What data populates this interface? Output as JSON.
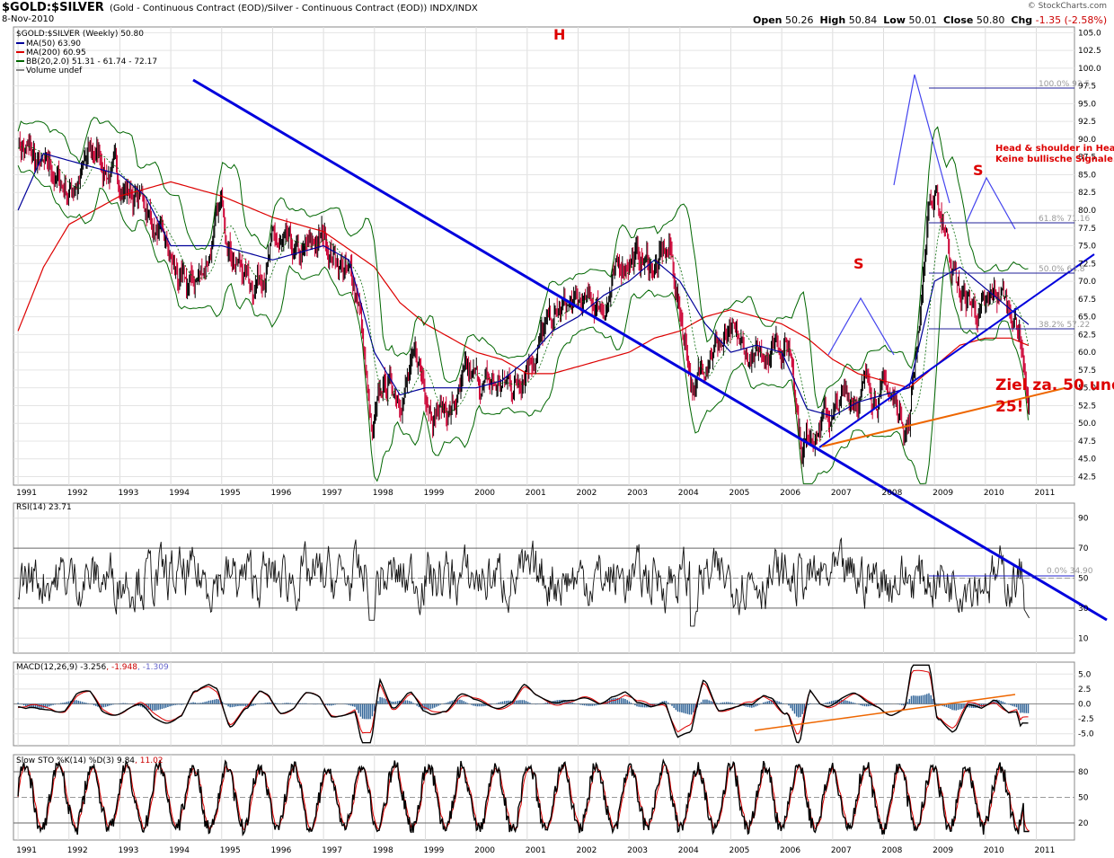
{
  "header": {
    "symbol": "$GOLD:$SILVER",
    "description": "(Gold - Continuous Contract (EOD)/Silver - Continuous Contract (EOD)) INDX/INDX",
    "date": "8-Nov-2010",
    "credit": "© StockCharts.com",
    "open_label": "Open",
    "open": "50.26",
    "high_label": "High",
    "high": "50.84",
    "low_label": "Low",
    "low": "50.01",
    "close_label": "Close",
    "close": "50.80",
    "chg_label": "Chg",
    "chg": "-1.35 (-2.58%)"
  },
  "colors": {
    "price": "#000000",
    "down": "#cc0033",
    "ma50": "#000099",
    "ma200": "#dd0000",
    "bb": "#006600",
    "trend": "#0000dd",
    "orange": "#ee6600",
    "annotation": "#dd0000",
    "macd_hist": "#336699"
  },
  "chart_data": [
    {
      "type": "candlestick",
      "title": "$GOLD:$SILVER (Weekly) 50.80",
      "legend": [
        {
          "label": "MA(50) 63.90",
          "color": "#000099"
        },
        {
          "label": "MA(200) 60.95",
          "color": "#dd0000"
        },
        {
          "label": "BB(20,2.0) 51.31 - 61.74 - 72.17",
          "color": "#006600"
        },
        {
          "label": "Volume undef",
          "color": "#888888"
        }
      ],
      "x_ticks": [
        "1991",
        "1992",
        "1993",
        "1994",
        "1995",
        "1996",
        "1997",
        "1998",
        "1999",
        "2000",
        "2001",
        "2002",
        "2003",
        "2004",
        "2005",
        "2006",
        "2007",
        "2008",
        "2009",
        "2010",
        "2011"
      ],
      "y_ticks": [
        "105.0",
        "102.5",
        "100.0",
        "97.5",
        "95.0",
        "92.5",
        "90.0",
        "87.5",
        "85.0",
        "82.5",
        "80.0",
        "77.5",
        "75.0",
        "72.5",
        "70.0",
        "67.5",
        "65.0",
        "62.5",
        "60.0",
        "57.5",
        "55.0",
        "52.5",
        "50.0",
        "47.5",
        "45.0",
        "42.5"
      ],
      "ylim": [
        41.3,
        105.8
      ],
      "series_close": [
        [
          1991.0,
          90
        ],
        [
          1991.5,
          85
        ],
        [
          1992.0,
          83
        ],
        [
          1992.5,
          88
        ],
        [
          1993.0,
          84
        ],
        [
          1993.5,
          81
        ],
        [
          1994.0,
          72
        ],
        [
          1994.3,
          68
        ],
        [
          1994.6,
          71
        ],
        [
          1995.0,
          80
        ],
        [
          1995.3,
          73
        ],
        [
          1995.6,
          70
        ],
        [
          1996.0,
          75
        ],
        [
          1996.5,
          72
        ],
        [
          1997.0,
          76
        ],
        [
          1997.4,
          72
        ],
        [
          1997.7,
          68
        ],
        [
          1997.95,
          47
        ],
        [
          1998.2,
          55
        ],
        [
          1998.5,
          55
        ],
        [
          1998.8,
          58
        ],
        [
          1999.2,
          53
        ],
        [
          1999.5,
          52
        ],
        [
          1999.8,
          55
        ],
        [
          2000.2,
          55
        ],
        [
          2000.5,
          55
        ],
        [
          2000.8,
          56
        ],
        [
          2001.0,
          60
        ],
        [
          2001.5,
          64
        ],
        [
          2001.8,
          66
        ],
        [
          2002.0,
          66
        ],
        [
          2002.5,
          67
        ],
        [
          2003.0,
          74
        ],
        [
          2003.5,
          72
        ],
        [
          2003.8,
          74
        ],
        [
          2004.0,
          66
        ],
        [
          2004.3,
          54
        ],
        [
          2004.6,
          62
        ],
        [
          2005.0,
          61
        ],
        [
          2005.5,
          58
        ],
        [
          2005.9,
          63
        ],
        [
          2006.2,
          60
        ],
        [
          2006.4,
          47
        ],
        [
          2006.6,
          50
        ],
        [
          2007.0,
          51
        ],
        [
          2007.5,
          55
        ],
        [
          2008.0,
          55
        ],
        [
          2008.5,
          50
        ],
        [
          2008.75,
          69
        ],
        [
          2008.9,
          82
        ],
        [
          2009.2,
          78
        ],
        [
          2009.5,
          68
        ],
        [
          2009.8,
          66
        ],
        [
          2010.0,
          65
        ],
        [
          2010.3,
          68
        ],
        [
          2010.5,
          66
        ],
        [
          2010.7,
          63
        ],
        [
          2010.85,
          52
        ]
      ],
      "ma50": [
        [
          1991.0,
          80
        ],
        [
          1991.5,
          88
        ],
        [
          1992.0,
          87
        ],
        [
          1993.0,
          85
        ],
        [
          1993.5,
          82
        ],
        [
          1994.0,
          75
        ],
        [
          1995.0,
          75
        ],
        [
          1995.5,
          74
        ],
        [
          1996.0,
          73
        ],
        [
          1997.0,
          75
        ],
        [
          1997.5,
          73
        ],
        [
          1998.0,
          60
        ],
        [
          1998.5,
          54
        ],
        [
          1999.0,
          55
        ],
        [
          1999.5,
          55
        ],
        [
          2000.0,
          55
        ],
        [
          2000.5,
          56
        ],
        [
          2001.0,
          59
        ],
        [
          2001.5,
          63
        ],
        [
          2002.0,
          65
        ],
        [
          2002.5,
          68
        ],
        [
          2003.0,
          70
        ],
        [
          2003.5,
          73
        ],
        [
          2004.0,
          70
        ],
        [
          2004.5,
          64
        ],
        [
          2005.0,
          60
        ],
        [
          2005.5,
          61
        ],
        [
          2006.0,
          60
        ],
        [
          2006.5,
          52
        ],
        [
          2007.0,
          51
        ],
        [
          2007.5,
          53
        ],
        [
          2008.0,
          54
        ],
        [
          2008.5,
          55
        ],
        [
          2009.0,
          70
        ],
        [
          2009.5,
          72
        ],
        [
          2010.0,
          69
        ],
        [
          2010.5,
          66
        ],
        [
          2010.85,
          63.9
        ]
      ],
      "ma200": [
        [
          1991.0,
          63
        ],
        [
          1991.5,
          72
        ],
        [
          1992.0,
          78
        ],
        [
          1993.0,
          82
        ],
        [
          1994.0,
          84
        ],
        [
          1995.0,
          82
        ],
        [
          1996.0,
          79
        ],
        [
          1997.0,
          77
        ],
        [
          1998.0,
          72
        ],
        [
          1998.5,
          67
        ],
        [
          1999.0,
          64
        ],
        [
          1999.5,
          62
        ],
        [
          2000.0,
          60
        ],
        [
          2000.5,
          59
        ],
        [
          2001.0,
          57
        ],
        [
          2001.5,
          57
        ],
        [
          2002.0,
          58
        ],
        [
          2002.5,
          59
        ],
        [
          2003.0,
          60
        ],
        [
          2003.5,
          62
        ],
        [
          2004.0,
          63
        ],
        [
          2004.5,
          65
        ],
        [
          2005.0,
          66
        ],
        [
          2005.5,
          65
        ],
        [
          2006.0,
          64
        ],
        [
          2006.5,
          62
        ],
        [
          2007.0,
          59
        ],
        [
          2007.5,
          57
        ],
        [
          2008.0,
          56
        ],
        [
          2008.5,
          55
        ],
        [
          2009.0,
          58
        ],
        [
          2009.5,
          61
        ],
        [
          2010.0,
          62
        ],
        [
          2010.5,
          62
        ],
        [
          2010.85,
          60.95
        ]
      ],
      "annotations": [
        {
          "text": "H"
        },
        {
          "text": "S"
        },
        {
          "text": "S"
        },
        {
          "text": "Head & shoulder in Hea"
        },
        {
          "text": "Keine bullische Signale."
        },
        {
          "text": "Ziel za. 50 und"
        },
        {
          "text": "25!"
        }
      ],
      "fib_levels": [
        "100.0% 93.5",
        "61.8% 71.16",
        "50.0% 64.8",
        "38.2% 57.22"
      ]
    },
    {
      "type": "line",
      "title": "RSI(14) 23.71",
      "y_ticks": [
        "90",
        "70",
        "50",
        "30",
        "10"
      ],
      "ylim": [
        0,
        100
      ],
      "extra_label": "0.0% 34.90"
    },
    {
      "type": "line",
      "title_parts": [
        "MACD(12,26,9)",
        "-3.256",
        "-1.948",
        "-1.309"
      ],
      "y_ticks": [
        "5.0",
        "2.5",
        "0.0",
        "-2.5",
        "-5.0"
      ],
      "ylim": [
        -7,
        7
      ]
    },
    {
      "type": "line",
      "title_parts": [
        "Slow STO %K(14) %D(3)",
        "9.84",
        "11.02"
      ],
      "y_ticks": [
        "80",
        "50",
        "20"
      ],
      "ylim": [
        0,
        100
      ]
    }
  ]
}
